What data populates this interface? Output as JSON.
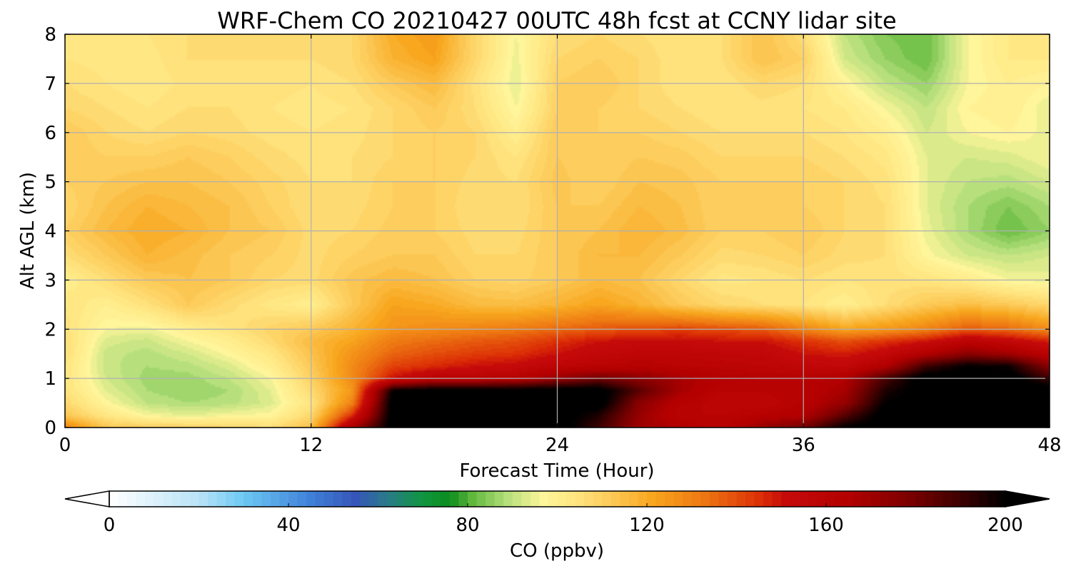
{
  "chart_data": {
    "type": "heatmap",
    "title": "WRF-Chem CO  20210427 00UTC 48h fcst at CCNY lidar site",
    "xlabel": "Forecast Time (Hour)",
    "ylabel": "Alt AGL (km)",
    "xlim": [
      0,
      48
    ],
    "ylim": [
      0,
      8
    ],
    "xticks": [
      0,
      12,
      24,
      36,
      48
    ],
    "yticks": [
      0,
      1,
      2,
      3,
      4,
      5,
      6,
      7,
      8
    ],
    "grid": true,
    "x": [
      0,
      2,
      4,
      6,
      8,
      10,
      12,
      14,
      16,
      18,
      20,
      22,
      24,
      26,
      28,
      30,
      32,
      34,
      36,
      38,
      40,
      42,
      44,
      46,
      48
    ],
    "y": [
      0,
      0.25,
      0.5,
      0.75,
      1,
      1.25,
      1.5,
      1.75,
      2,
      2.5,
      3,
      3.5,
      4,
      4.5,
      5,
      5.5,
      6,
      6.5,
      7,
      7.5,
      8
    ],
    "z": [
      [
        130,
        113,
        111,
        110,
        109,
        106,
        115,
        168,
        205,
        205,
        205,
        205,
        205,
        190,
        170,
        165,
        160,
        172,
        180,
        200,
        205,
        205,
        205,
        205,
        200
      ],
      [
        113,
        103,
        96,
        94,
        96,
        97,
        108,
        145,
        205,
        205,
        205,
        205,
        205,
        195,
        172,
        160,
        160,
        162,
        165,
        185,
        205,
        205,
        205,
        205,
        205
      ],
      [
        108,
        97,
        90,
        88,
        89,
        93,
        104,
        130,
        205,
        205,
        205,
        205,
        205,
        205,
        175,
        162,
        158,
        158,
        162,
        172,
        200,
        205,
        205,
        205,
        205
      ],
      [
        105,
        94,
        88,
        86,
        88,
        94,
        107,
        125,
        200,
        205,
        205,
        205,
        205,
        205,
        185,
        168,
        160,
        160,
        162,
        168,
        195,
        205,
        205,
        205,
        205
      ],
      [
        104,
        92,
        87,
        87,
        90,
        96,
        110,
        128,
        150,
        160,
        160,
        162,
        172,
        180,
        175,
        168,
        163,
        162,
        162,
        165,
        188,
        205,
        205,
        205,
        190
      ],
      [
        104,
        91,
        88,
        89,
        93,
        100,
        112,
        128,
        142,
        146,
        150,
        152,
        158,
        160,
        162,
        160,
        159,
        158,
        156,
        154,
        165,
        190,
        200,
        198,
        175
      ],
      [
        106,
        91,
        89,
        92,
        97,
        103,
        114,
        126,
        136,
        140,
        143,
        145,
        150,
        155,
        157,
        157,
        156,
        155,
        150,
        148,
        154,
        165,
        175,
        170,
        160
      ],
      [
        106,
        93,
        91,
        96,
        100,
        107,
        116,
        122,
        132,
        135,
        138,
        140,
        145,
        150,
        152,
        152,
        150,
        150,
        145,
        140,
        145,
        150,
        160,
        155,
        148
      ],
      [
        105,
        96,
        95,
        100,
        104,
        109,
        112,
        118,
        126,
        128,
        130,
        132,
        135,
        138,
        140,
        142,
        140,
        138,
        130,
        122,
        125,
        130,
        138,
        135,
        128
      ],
      [
        104,
        100,
        105,
        112,
        107,
        103,
        100,
        112,
        122,
        120,
        116,
        115,
        118,
        122,
        118,
        112,
        108,
        106,
        104,
        100,
        106,
        112,
        115,
        112,
        108
      ],
      [
        100,
        106,
        112,
        114,
        112,
        108,
        107,
        113,
        116,
        114,
        110,
        109,
        112,
        116,
        114,
        108,
        103,
        104,
        106,
        104,
        105,
        104,
        101,
        96,
        95
      ],
      [
        106,
        112,
        118,
        115,
        112,
        110,
        107,
        110,
        112,
        112,
        108,
        108,
        112,
        116,
        116,
        112,
        107,
        108,
        110,
        107,
        106,
        97,
        92,
        90,
        92
      ],
      [
        110,
        116,
        120,
        118,
        114,
        112,
        107,
        108,
        111,
        110,
        107,
        107,
        112,
        114,
        118,
        115,
        110,
        110,
        112,
        108,
        106,
        95,
        88,
        82,
        86
      ],
      [
        108,
        114,
        118,
        116,
        114,
        110,
        106,
        107,
        110,
        110,
        106,
        106,
        112,
        112,
        116,
        114,
        110,
        110,
        110,
        108,
        106,
        94,
        88,
        84,
        88
      ],
      [
        110,
        112,
        114,
        114,
        112,
        109,
        106,
        106,
        110,
        110,
        107,
        106,
        113,
        110,
        114,
        113,
        110,
        110,
        110,
        108,
        105,
        94,
        90,
        89,
        92
      ],
      [
        112,
        110,
        110,
        112,
        110,
        107,
        105,
        106,
        108,
        110,
        108,
        104,
        112,
        110,
        112,
        111,
        108,
        108,
        108,
        106,
        103,
        94,
        92,
        93,
        96
      ],
      [
        112,
        108,
        106,
        108,
        107,
        105,
        104,
        105,
        108,
        110,
        108,
        100,
        112,
        110,
        110,
        108,
        106,
        106,
        106,
        104,
        100,
        92,
        96,
        98,
        95
      ],
      [
        108,
        106,
        104,
        106,
        106,
        104,
        103,
        104,
        108,
        112,
        106,
        96,
        110,
        110,
        108,
        106,
        104,
        105,
        104,
        102,
        96,
        90,
        98,
        100,
        94
      ],
      [
        106,
        104,
        102,
        105,
        106,
        105,
        104,
        106,
        112,
        116,
        105,
        94,
        110,
        112,
        108,
        104,
        104,
        108,
        106,
        98,
        90,
        86,
        96,
        100,
        98
      ],
      [
        104,
        103,
        103,
        106,
        106,
        106,
        106,
        108,
        118,
        122,
        108,
        95,
        108,
        110,
        108,
        104,
        106,
        114,
        110,
        92,
        86,
        82,
        96,
        102,
        102
      ],
      [
        104,
        104,
        104,
        106,
        106,
        106,
        106,
        108,
        120,
        124,
        108,
        96,
        106,
        108,
        106,
        104,
        106,
        114,
        106,
        90,
        84,
        82,
        96,
        102,
        102
      ]
    ],
    "colorbar": {
      "label": "CO  (ppbv)",
      "min": 0,
      "max": 200,
      "extend": "both",
      "ticks": [
        0,
        40,
        80,
        120,
        160,
        200
      ]
    }
  }
}
